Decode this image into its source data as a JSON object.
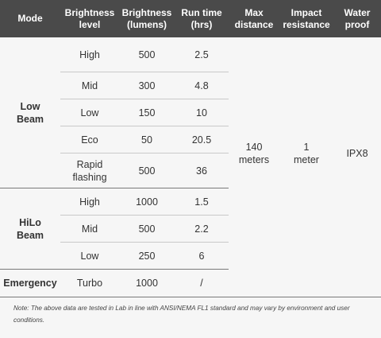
{
  "headers": {
    "mode": [
      "Mode"
    ],
    "level": [
      "Brightness",
      "level"
    ],
    "lumens": [
      "Brightness",
      "(lumens)"
    ],
    "runtime": [
      "Run time",
      "(hrs)"
    ],
    "distance": [
      "Max",
      "distance"
    ],
    "impact": [
      "Impact",
      "resistance"
    ],
    "water": [
      "Water",
      "proof"
    ]
  },
  "low_beam": {
    "mode": [
      "Low",
      "Beam"
    ],
    "rows": [
      {
        "level": "High",
        "lumens": "500",
        "runtime": "2.5"
      },
      {
        "level": "Mid",
        "lumens": "300",
        "runtime": "4.8"
      },
      {
        "level": "Low",
        "lumens": "150",
        "runtime": "10"
      },
      {
        "level": "Eco",
        "lumens": "50",
        "runtime": "20.5"
      },
      {
        "level": [
          "Rapid",
          "flashing"
        ],
        "lumens": "500",
        "runtime": "36"
      }
    ]
  },
  "hilo_beam": {
    "mode": [
      "HiLo",
      "Beam"
    ],
    "rows": [
      {
        "level": "High",
        "lumens": "1000",
        "runtime": "1.5"
      },
      {
        "level": "Mid",
        "lumens": "500",
        "runtime": "2.2"
      },
      {
        "level": "Low",
        "lumens": "250",
        "runtime": "6"
      }
    ]
  },
  "shared": {
    "distance": [
      "140",
      "meters"
    ],
    "impact": [
      "1",
      "meter"
    ],
    "water": "IPX8"
  },
  "emergency": {
    "mode": "Emergency",
    "level": "Turbo",
    "lumens": "1000",
    "runtime": "/"
  },
  "note": "Note: The above data are tested in Lab in line with ANSI/NEMA FL1 standard and may vary by environment and user conditions."
}
